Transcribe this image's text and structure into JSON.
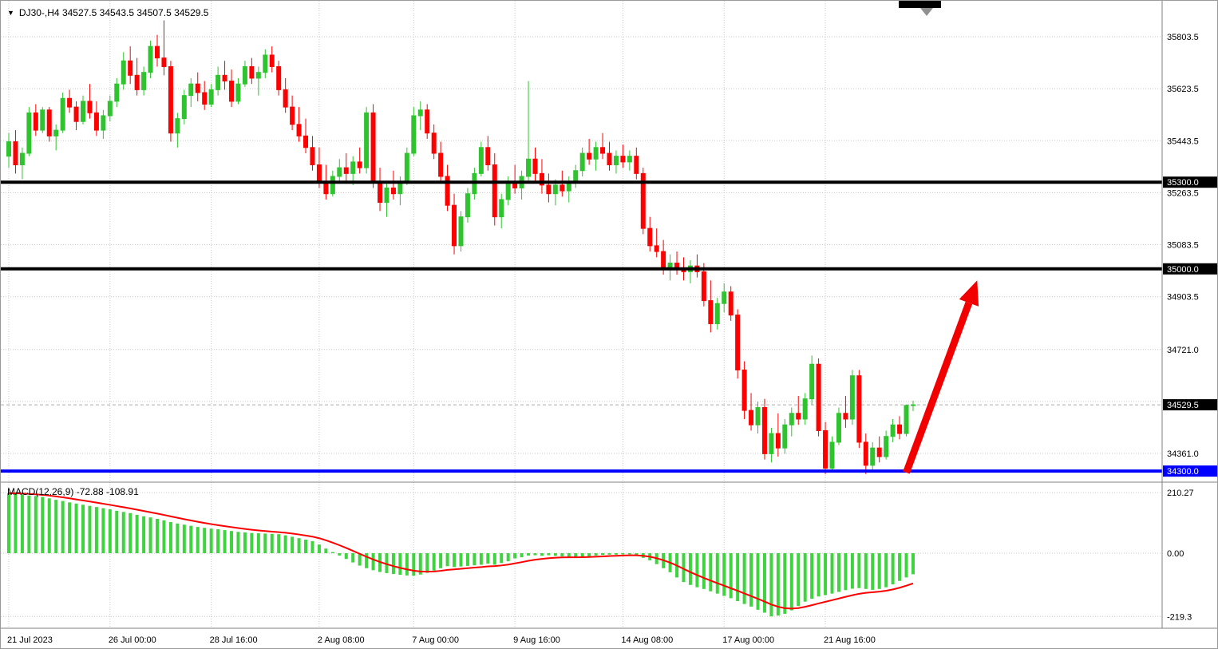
{
  "header": {
    "collapse_icon": "▼",
    "quote_text": "DJ30-,H4 34527.5 34543.5 34507.5 34529.5"
  },
  "colors": {
    "up": "#2fc42f",
    "down": "#ff0000",
    "histogram": "#3fd43f",
    "signal": "#ff0000",
    "grid": "#c8c8c8",
    "current_price_line": "#ababab",
    "separator": "#808080",
    "badge_black": "#000000",
    "badge_blue": "#0000ff",
    "arrow": "#f20000",
    "shift_marker": "#909090"
  },
  "chart_data": {
    "type": "candlestick",
    "symbol": "DJ30-",
    "timeframe": "H4",
    "quote": {
      "open": 34527.5,
      "high": 34543.5,
      "low": 34507.5,
      "close": 34529.5
    },
    "price_axis": {
      "labels": [
        {
          "text": "35803.5",
          "price": 35803.5
        },
        {
          "text": "35623.5",
          "price": 35623.5
        },
        {
          "text": "35443.5",
          "price": 35443.5
        },
        {
          "text": "35263.5",
          "price": 35263.5
        },
        {
          "text": "35083.5",
          "price": 35083.5
        },
        {
          "text": "34903.5",
          "price": 34903.5
        },
        {
          "text": "34721.0",
          "price": 34721.0
        },
        {
          "text": "34361.0",
          "price": 34361.0
        }
      ],
      "gridlines": [
        35803.5,
        35623.5,
        35443.5,
        35263.5,
        35083.5,
        34903.5,
        34721.0,
        34541.0,
        34361.0
      ],
      "current_price": 34529.5,
      "current_label": "34529.5"
    },
    "hlines": [
      {
        "label": "35300.0",
        "price": 35300.0,
        "color": "#000000"
      },
      {
        "label": "35000.0",
        "price": 35000.0,
        "color": "#000000"
      },
      {
        "label": "34300.0",
        "price": 34300.0,
        "color": "#0000ff"
      }
    ],
    "time_axis": [
      {
        "text": "21 Jul 2023",
        "bar": 0
      },
      {
        "text": "26 Jul 00:00",
        "bar": 15
      },
      {
        "text": "28 Jul 16:00",
        "bar": 30
      },
      {
        "text": "2 Aug 08:00",
        "bar": 46
      },
      {
        "text": "7 Aug 00:00",
        "bar": 60
      },
      {
        "text": "9 Aug 16:00",
        "bar": 75
      },
      {
        "text": "14 Aug 08:00",
        "bar": 91
      },
      {
        "text": "17 Aug 00:00",
        "bar": 106
      },
      {
        "text": "21 Aug 16:00",
        "bar": 121
      }
    ],
    "candles": [
      [
        35390,
        35470,
        35350,
        35440
      ],
      [
        35440,
        35480,
        35330,
        35360
      ],
      [
        35360,
        35420,
        35310,
        35400
      ],
      [
        35400,
        35560,
        35390,
        35540
      ],
      [
        35540,
        35570,
        35460,
        35480
      ],
      [
        35480,
        35560,
        35470,
        35550
      ],
      [
        35550,
        35560,
        35440,
        35460
      ],
      [
        35460,
        35500,
        35410,
        35480
      ],
      [
        35480,
        35610,
        35470,
        35590
      ],
      [
        35590,
        35620,
        35540,
        35560
      ],
      [
        35560,
        35580,
        35480,
        35510
      ],
      [
        35510,
        35600,
        35500,
        35580
      ],
      [
        35580,
        35640,
        35520,
        35540
      ],
      [
        35540,
        35580,
        35460,
        35480
      ],
      [
        35480,
        35550,
        35450,
        35530
      ],
      [
        35530,
        35600,
        35510,
        35580
      ],
      [
        35580,
        35660,
        35560,
        35640
      ],
      [
        35640,
        35750,
        35620,
        35720
      ],
      [
        35720,
        35770,
        35640,
        35670
      ],
      [
        35670,
        35730,
        35600,
        35620
      ],
      [
        35620,
        35700,
        35600,
        35680
      ],
      [
        35680,
        35790,
        35660,
        35770
      ],
      [
        35770,
        35810,
        35700,
        35730
      ],
      [
        35730,
        35860,
        35670,
        35700
      ],
      [
        35700,
        35720,
        35440,
        35470
      ],
      [
        35470,
        35540,
        35420,
        35520
      ],
      [
        35520,
        35620,
        35500,
        35600
      ],
      [
        35600,
        35660,
        35560,
        35640
      ],
      [
        35640,
        35680,
        35580,
        35610
      ],
      [
        35610,
        35650,
        35550,
        35570
      ],
      [
        35570,
        35640,
        35560,
        35620
      ],
      [
        35620,
        35700,
        35600,
        35670
      ],
      [
        35670,
        35720,
        35620,
        35650
      ],
      [
        35650,
        35690,
        35560,
        35580
      ],
      [
        35580,
        35660,
        35570,
        35640
      ],
      [
        35640,
        35720,
        35630,
        35700
      ],
      [
        35700,
        35730,
        35640,
        35660
      ],
      [
        35660,
        35700,
        35600,
        35680
      ],
      [
        35680,
        35760,
        35660,
        35740
      ],
      [
        35740,
        35770,
        35680,
        35700
      ],
      [
        35700,
        35720,
        35600,
        35620
      ],
      [
        35620,
        35660,
        35540,
        35560
      ],
      [
        35560,
        35600,
        35480,
        35500
      ],
      [
        35500,
        35560,
        35440,
        35460
      ],
      [
        35460,
        35520,
        35400,
        35420
      ],
      [
        35420,
        35460,
        35340,
        35360
      ],
      [
        35360,
        35420,
        35280,
        35300
      ],
      [
        35300,
        35360,
        35240,
        35260
      ],
      [
        35260,
        35340,
        35250,
        35320
      ],
      [
        35320,
        35380,
        35300,
        35350
      ],
      [
        35350,
        35400,
        35300,
        35330
      ],
      [
        35330,
        35390,
        35290,
        35370
      ],
      [
        35370,
        35420,
        35330,
        35350
      ],
      [
        35350,
        35560,
        35330,
        35540
      ],
      [
        35540,
        35570,
        35280,
        35300
      ],
      [
        35300,
        35350,
        35200,
        35230
      ],
      [
        35230,
        35300,
        35180,
        35280
      ],
      [
        35280,
        35340,
        35240,
        35260
      ],
      [
        35260,
        35320,
        35220,
        35300
      ],
      [
        35300,
        35420,
        35290,
        35400
      ],
      [
        35400,
        35560,
        35390,
        35530
      ],
      [
        35530,
        35580,
        35480,
        35550
      ],
      [
        35550,
        35570,
        35450,
        35470
      ],
      [
        35470,
        35500,
        35380,
        35400
      ],
      [
        35400,
        35440,
        35300,
        35320
      ],
      [
        35320,
        35360,
        35200,
        35220
      ],
      [
        35220,
        35260,
        35050,
        35080
      ],
      [
        35080,
        35200,
        35060,
        35180
      ],
      [
        35180,
        35280,
        35160,
        35260
      ],
      [
        35260,
        35350,
        35240,
        35330
      ],
      [
        35330,
        35440,
        35320,
        35420
      ],
      [
        35420,
        35460,
        35340,
        35360
      ],
      [
        35360,
        35400,
        35150,
        35180
      ],
      [
        35180,
        35260,
        35140,
        35240
      ],
      [
        35240,
        35320,
        35220,
        35300
      ],
      [
        35300,
        35360,
        35260,
        35280
      ],
      [
        35280,
        35340,
        35240,
        35320
      ],
      [
        35320,
        35650,
        35300,
        35380
      ],
      [
        35380,
        35420,
        35300,
        35330
      ],
      [
        35330,
        35380,
        35260,
        35290
      ],
      [
        35290,
        35330,
        35230,
        35260
      ],
      [
        35260,
        35310,
        35220,
        35290
      ],
      [
        35290,
        35340,
        35250,
        35270
      ],
      [
        35270,
        35320,
        35230,
        35300
      ],
      [
        35300,
        35360,
        35280,
        35340
      ],
      [
        35340,
        35420,
        35320,
        35400
      ],
      [
        35400,
        35450,
        35360,
        35380
      ],
      [
        35380,
        35440,
        35340,
        35420
      ],
      [
        35420,
        35470,
        35380,
        35400
      ],
      [
        35400,
        35440,
        35340,
        35360
      ],
      [
        35360,
        35410,
        35330,
        35390
      ],
      [
        35390,
        35430,
        35350,
        35370
      ],
      [
        35370,
        35410,
        35340,
        35390
      ],
      [
        35390,
        35420,
        35310,
        35330
      ],
      [
        35330,
        35350,
        35120,
        35140
      ],
      [
        35140,
        35180,
        35060,
        35080
      ],
      [
        35080,
        35140,
        35040,
        35060
      ],
      [
        35060,
        35100,
        34980,
        35000
      ],
      [
        35000,
        35050,
        34960,
        35020
      ],
      [
        35020,
        35060,
        34980,
        35000
      ],
      [
        35000,
        35040,
        34960,
        34990
      ],
      [
        34990,
        35030,
        34950,
        35010
      ],
      [
        35010,
        35050,
        34970,
        34990
      ],
      [
        34990,
        35020,
        34870,
        34890
      ],
      [
        34890,
        34960,
        34780,
        34810
      ],
      [
        34810,
        34900,
        34790,
        34880
      ],
      [
        34880,
        34950,
        34850,
        34920
      ],
      [
        34920,
        34940,
        34820,
        34840
      ],
      [
        34840,
        34860,
        34620,
        34650
      ],
      [
        34650,
        34680,
        34480,
        34510
      ],
      [
        34510,
        34570,
        34440,
        34460
      ],
      [
        34460,
        34540,
        34430,
        34520
      ],
      [
        34520,
        34550,
        34340,
        34360
      ],
      [
        34360,
        34450,
        34330,
        34430
      ],
      [
        34430,
        34500,
        34350,
        34380
      ],
      [
        34380,
        34480,
        34360,
        34460
      ],
      [
        34460,
        34520,
        34420,
        34500
      ],
      [
        34500,
        34560,
        34460,
        34480
      ],
      [
        34480,
        34570,
        34460,
        34550
      ],
      [
        34550,
        34700,
        34530,
        34670
      ],
      [
        34670,
        34690,
        34420,
        34440
      ],
      [
        34440,
        34470,
        34290,
        34310
      ],
      [
        34310,
        34420,
        34300,
        34400
      ],
      [
        34400,
        34520,
        34390,
        34500
      ],
      [
        34500,
        34560,
        34450,
        34480
      ],
      [
        34480,
        34650,
        34460,
        34630
      ],
      [
        34630,
        34650,
        34380,
        34400
      ],
      [
        34400,
        34430,
        34290,
        34320
      ],
      [
        34320,
        34400,
        34300,
        34380
      ],
      [
        34380,
        34420,
        34330,
        34350
      ],
      [
        34350,
        34440,
        34340,
        34420
      ],
      [
        34420,
        34480,
        34400,
        34460
      ],
      [
        34460,
        34490,
        34410,
        34430
      ],
      [
        34430,
        34530,
        34420,
        34527.5
      ],
      [
        34527.5,
        34543.5,
        34507.5,
        34529.5
      ]
    ],
    "macd": {
      "label_text": "MACD(12,26,9) -72.88 -108.91",
      "name": "MACD",
      "params": [
        12,
        26,
        9
      ],
      "value_main": -72.88,
      "value_signal": -108.91,
      "signal_period": 9,
      "scale": [
        {
          "text": "210.27",
          "value": 210.27
        },
        {
          "text": "0.00",
          "value": 0
        },
        {
          "text": "-219.3",
          "value": -219.3
        }
      ],
      "values": [
        208,
        206,
        203,
        200,
        198,
        195,
        190,
        185,
        181,
        176,
        172,
        168,
        164,
        160,
        156,
        152,
        147,
        143,
        139,
        133,
        128,
        124,
        119,
        114,
        108,
        103,
        99,
        95,
        91,
        88,
        85,
        83,
        80,
        77,
        74,
        72,
        70,
        69,
        68,
        67,
        66,
        62,
        57,
        52,
        47,
        42,
        30,
        16,
        4,
        -8,
        -20,
        -32,
        -43,
        -52,
        -59,
        -65,
        -69,
        -72,
        -75,
        -77,
        -78,
        -74,
        -68,
        -60,
        -52,
        -45,
        -48,
        -46,
        -44,
        -42,
        -40,
        -36,
        -40,
        -34,
        -28,
        -18,
        -14,
        -8,
        -7,
        -9,
        -7,
        -9,
        -11,
        -13,
        -13,
        -13,
        -11,
        -8,
        -6,
        -5,
        -5,
        -4,
        -4,
        -8,
        -16,
        -25,
        -38,
        -52,
        -66,
        -84,
        -100,
        -110,
        -118,
        -124,
        -132,
        -140,
        -148,
        -156,
        -166,
        -176,
        -185,
        -196,
        -206,
        -219,
        -216,
        -210,
        -198,
        -183,
        -168,
        -158,
        -150,
        -145,
        -140,
        -134,
        -128,
        -123,
        -121,
        -124,
        -127,
        -124,
        -118,
        -108,
        -96,
        -84,
        -72.88
      ]
    },
    "arrow": {
      "from_bar": 133,
      "from_price": 34295,
      "to_bar": 143.5,
      "to_price": 34960,
      "color": "#f20000"
    }
  }
}
